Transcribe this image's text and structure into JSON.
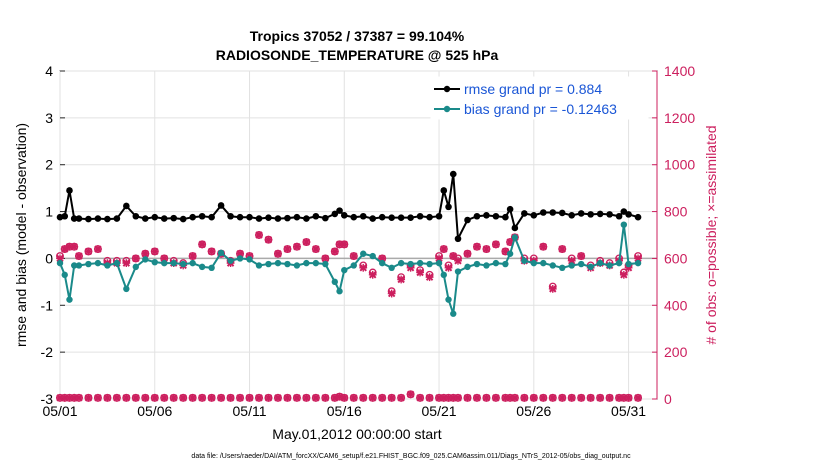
{
  "chart_data": {
    "type": "line",
    "title": "Tropics 37052 / 37387 = 99.104%",
    "subtitle": "RADIOSONDE_TEMPERATURE @ 525 hPa",
    "xlabel": "May.01,2012 00:00:00 start",
    "ylabel_left": "rmse and bias (model - observation)",
    "ylabel_right": "# of obs: o=possible; ×=assimilated",
    "footnote": "data file: /Users/raeder/DAI/ATM_forcXX/CAM6_setup/f.e21.FHIST_BGC.f09_025.CAM6assim.011/Diags_NTrS_2012-05/obs_diag_output.nc",
    "xlim": [
      1,
      32.5
    ],
    "ylim_left": [
      -3,
      4
    ],
    "ylim_right": [
      0,
      1400
    ],
    "x_tick_labels": [
      "05/01",
      "05/06",
      "05/11",
      "05/16",
      "05/21",
      "05/26",
      "05/31"
    ],
    "x_tick_days": [
      1,
      6,
      11,
      16,
      21,
      26,
      31
    ],
    "y_left_ticks": [
      -3,
      -2,
      -1,
      0,
      1,
      2,
      3,
      4
    ],
    "y_right_ticks": [
      0,
      200,
      400,
      600,
      800,
      1000,
      1200,
      1400
    ],
    "grid": true,
    "legend_position": "top-right",
    "colors": {
      "rmse": "#000000",
      "bias": "#1a8a8a",
      "obs": "#cc1f5e",
      "zero_line": "#aaaaaa",
      "legend_text": "#1a56d6",
      "grid": "#e2e2e2"
    },
    "x": [
      1,
      1.25,
      1.5,
      1.75,
      2,
      2.5,
      3,
      3.5,
      4,
      4.5,
      5,
      5.5,
      6,
      6.5,
      7,
      7.5,
      8,
      8.5,
      9,
      9.5,
      10,
      10.5,
      11,
      11.5,
      12,
      12.5,
      13,
      13.5,
      14,
      14.5,
      15,
      15.5,
      15.75,
      16,
      16.5,
      17,
      17.5,
      18,
      18.5,
      19,
      19.5,
      20,
      20.5,
      21,
      21.25,
      21.5,
      21.75,
      22,
      22.5,
      23,
      23.5,
      24,
      24.5,
      24.75,
      25,
      25.5,
      26,
      26.5,
      27,
      27.5,
      28,
      28.5,
      29,
      29.5,
      30,
      30.5,
      30.75,
      31,
      31.5
    ],
    "series": [
      {
        "name": "rmse grand pr = 0.884",
        "legend_label": "rmse grand pr = 0.884",
        "marker": "*",
        "values": [
          0.88,
          0.9,
          1.45,
          0.85,
          0.85,
          0.84,
          0.85,
          0.84,
          0.85,
          1.12,
          0.9,
          0.85,
          0.88,
          0.85,
          0.86,
          0.84,
          0.88,
          0.9,
          0.88,
          1.13,
          0.9,
          0.88,
          0.88,
          0.85,
          0.87,
          0.85,
          0.86,
          0.88,
          0.85,
          0.9,
          0.86,
          0.95,
          1.02,
          0.92,
          0.88,
          0.9,
          0.85,
          0.88,
          0.87,
          0.87,
          0.87,
          0.9,
          0.88,
          0.9,
          1.45,
          1.1,
          1.8,
          0.42,
          0.82,
          0.9,
          0.92,
          0.9,
          0.88,
          1.05,
          0.65,
          0.96,
          0.92,
          0.98,
          0.98,
          0.97,
          0.92,
          0.96,
          0.94,
          0.95,
          0.94,
          0.9,
          1.0,
          0.94,
          0.88
        ]
      },
      {
        "name": "bias grand pr = -0.12463",
        "legend_label": "bias grand pr = -0.12463",
        "marker": "o",
        "values": [
          -0.1,
          -0.35,
          -0.88,
          -0.15,
          -0.15,
          -0.12,
          -0.1,
          -0.15,
          -0.1,
          -0.65,
          -0.18,
          -0.02,
          -0.08,
          -0.1,
          -0.1,
          -0.12,
          -0.1,
          -0.18,
          -0.2,
          0.12,
          -0.05,
          0.0,
          -0.02,
          -0.15,
          -0.12,
          -0.1,
          -0.12,
          -0.15,
          -0.1,
          -0.1,
          -0.12,
          -0.5,
          -0.7,
          -0.25,
          -0.15,
          0.1,
          0.05,
          -0.1,
          -0.2,
          -0.1,
          -0.12,
          -0.1,
          -0.12,
          -0.1,
          -0.35,
          -0.88,
          -1.18,
          -0.28,
          -0.18,
          -0.12,
          -0.15,
          -0.1,
          -0.12,
          0.1,
          0.45,
          -0.05,
          -0.1,
          -0.1,
          -0.15,
          -0.2,
          -0.15,
          -0.12,
          -0.18,
          -0.1,
          -0.15,
          -0.1,
          0.72,
          -0.12,
          -0.1
        ]
      },
      {
        "name": "obs assimilated",
        "marker": "x",
        "values": [
          600,
          640,
          650,
          650,
          610,
          630,
          640,
          580,
          580,
          580,
          600,
          620,
          630,
          600,
          580,
          570,
          610,
          660,
          630,
          620,
          580,
          620,
          610,
          700,
          680,
          620,
          640,
          650,
          670,
          640,
          600,
          630,
          660,
          660,
          610,
          560,
          530,
          600,
          450,
          510,
          560,
          540,
          520,
          600,
          640,
          560,
          610,
          590,
          620,
          650,
          640,
          660,
          630,
          670,
          690,
          590,
          590,
          650,
          470,
          640,
          590,
          610,
          560,
          580,
          570,
          590,
          530,
          560,
          600
        ]
      },
      {
        "name": "obs possible",
        "marker": "o-open",
        "values": [
          610,
          640,
          650,
          650,
          610,
          630,
          640,
          590,
          590,
          590,
          600,
          620,
          630,
          600,
          590,
          580,
          610,
          660,
          630,
          620,
          590,
          620,
          610,
          700,
          680,
          620,
          640,
          650,
          670,
          640,
          600,
          630,
          660,
          660,
          610,
          570,
          540,
          600,
          460,
          520,
          570,
          550,
          530,
          610,
          640,
          570,
          610,
          600,
          620,
          650,
          640,
          660,
          630,
          670,
          690,
          600,
          600,
          650,
          480,
          640,
          600,
          610,
          570,
          590,
          580,
          600,
          540,
          570,
          610
        ]
      },
      {
        "name": "obs baseline assimilated",
        "marker": "x",
        "values": [
          5,
          5,
          5,
          5,
          5,
          5,
          5,
          5,
          5,
          5,
          5,
          5,
          5,
          5,
          5,
          5,
          5,
          5,
          5,
          5,
          5,
          5,
          5,
          5,
          5,
          5,
          5,
          5,
          5,
          5,
          5,
          5,
          10,
          5,
          5,
          5,
          5,
          5,
          5,
          5,
          20,
          5,
          5,
          5,
          5,
          5,
          5,
          5,
          5,
          5,
          5,
          5,
          5,
          5,
          5,
          5,
          5,
          5,
          5,
          5,
          5,
          5,
          5,
          5,
          5,
          5,
          5,
          5,
          5
        ]
      }
    ]
  }
}
